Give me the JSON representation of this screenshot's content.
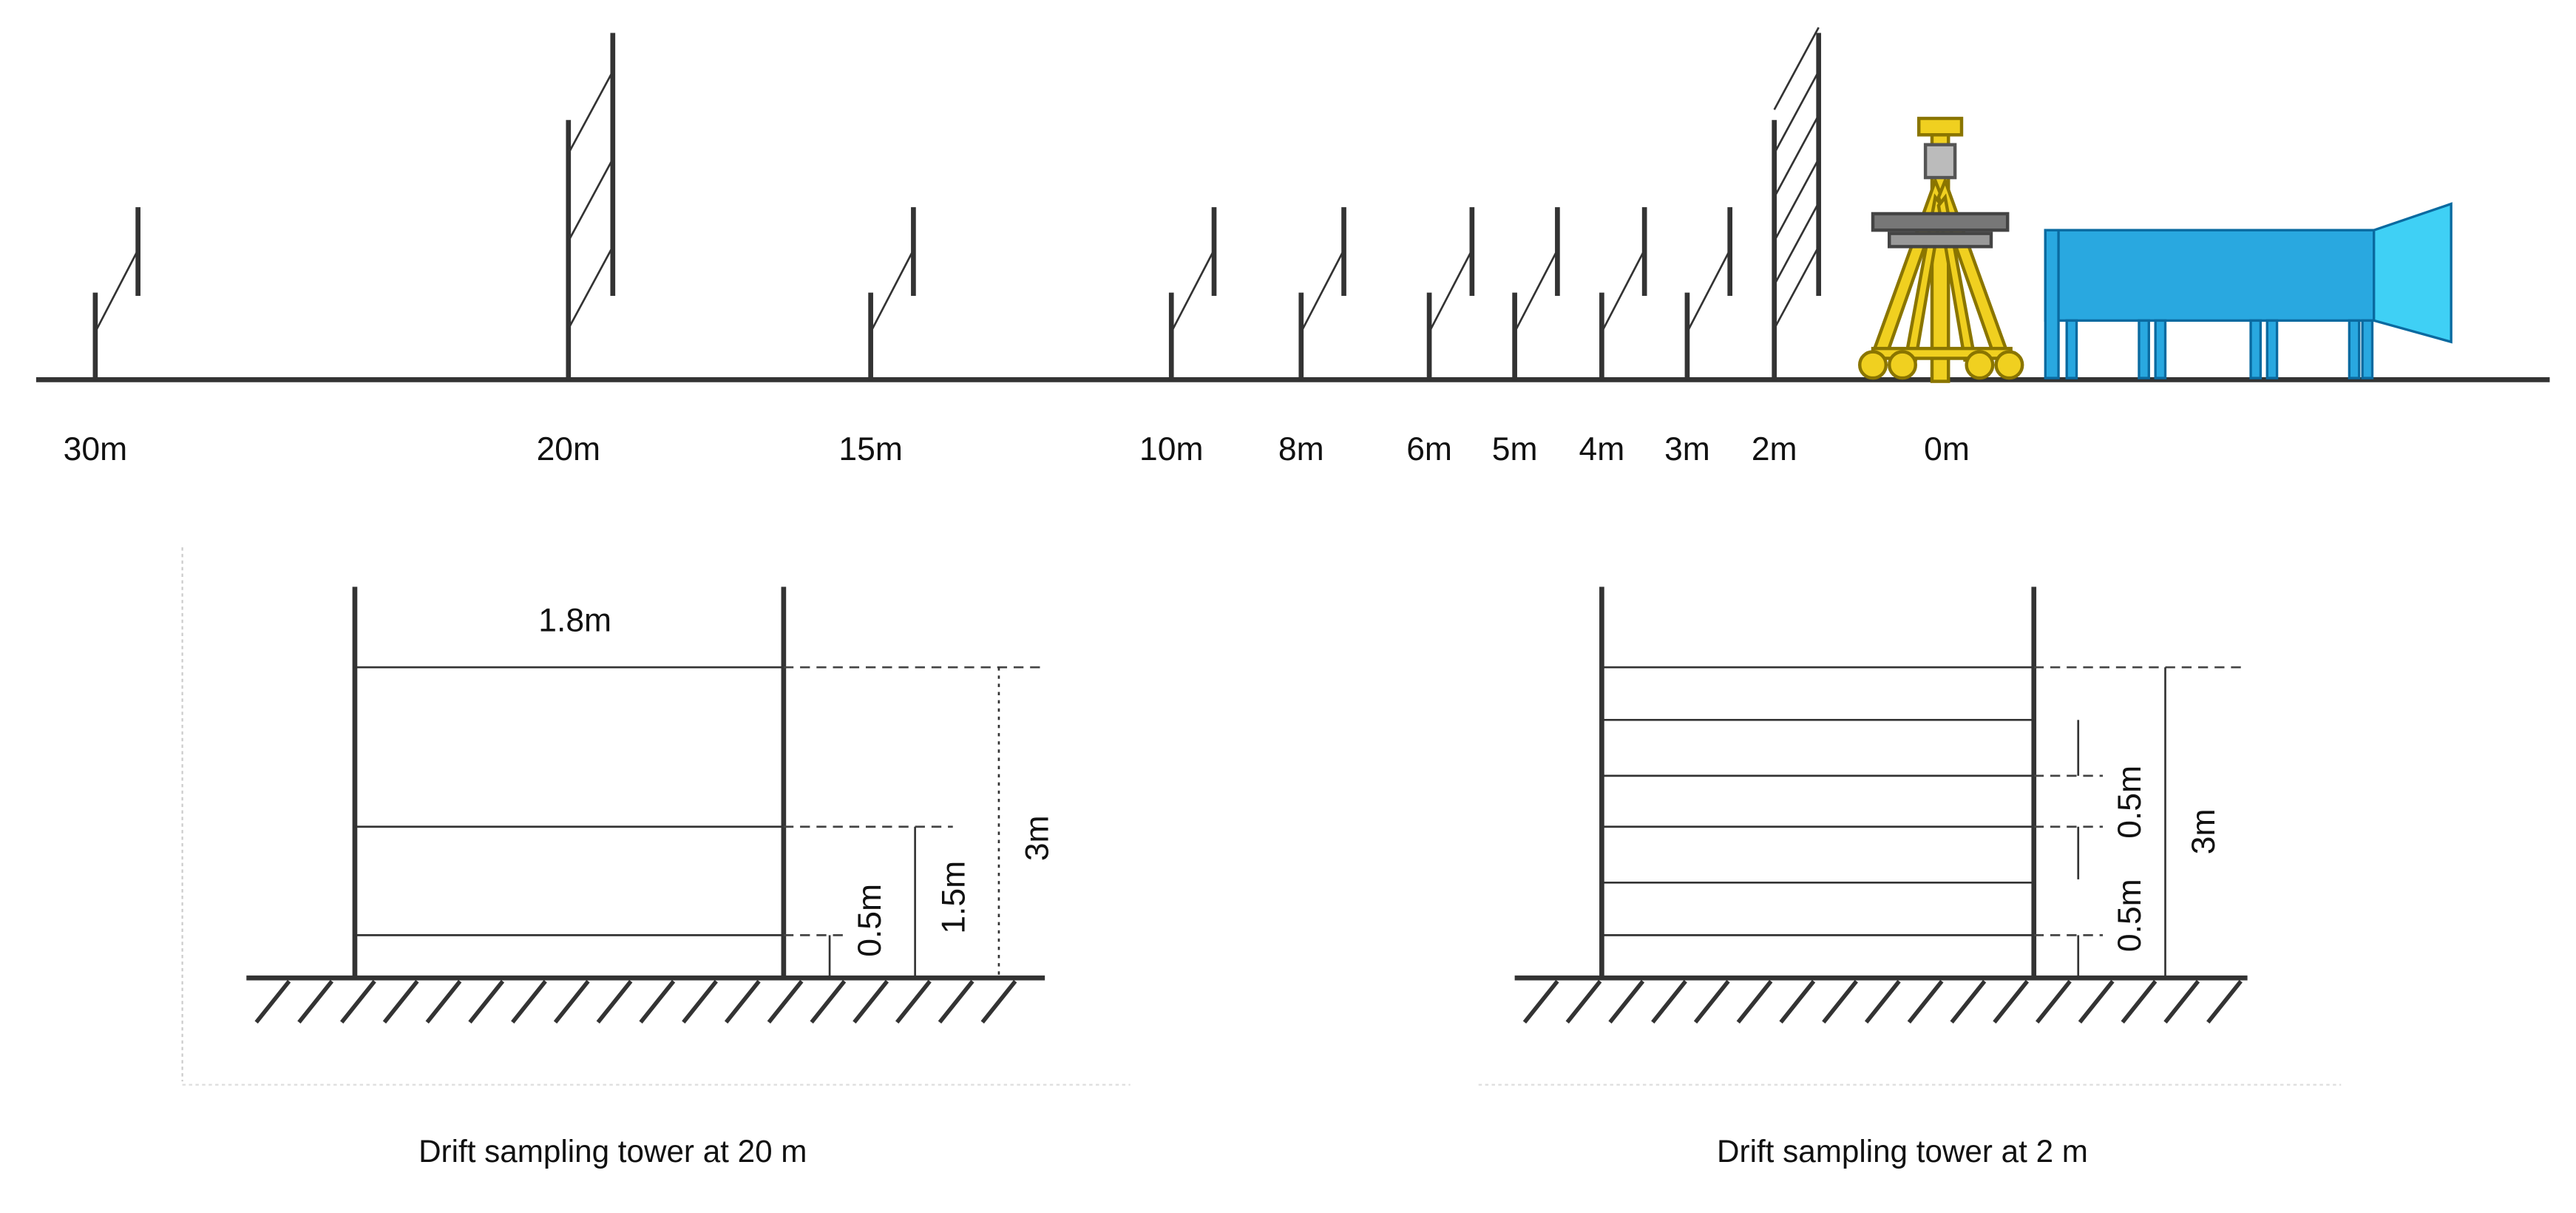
{
  "top_view": {
    "distances": [
      "30m",
      "20m",
      "15m",
      "10m",
      "8m",
      "6m",
      "5m",
      "4m",
      "3m",
      "2m",
      "0m"
    ]
  },
  "tower_20m": {
    "width": "1.8m",
    "dim_low": "0.5m",
    "dim_mid": "1.5m",
    "dim_total": "3m",
    "caption": "Drift sampling tower at 20 m"
  },
  "tower_2m": {
    "dim_upper": "0.5m",
    "dim_low": "0.5m",
    "dim_total": "3m",
    "caption": "Drift sampling tower at 2 m"
  }
}
